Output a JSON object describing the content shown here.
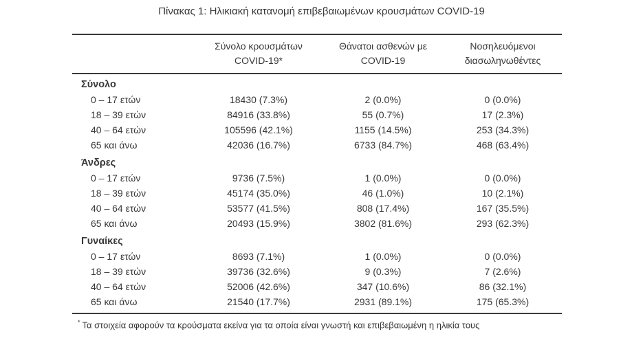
{
  "page": {
    "title": "Πίνακας 1: Ηλικιακή κατανομή επιβεβαιωμένων κρουσμάτων COVID-19"
  },
  "table": {
    "col_headers": [
      {
        "line1": "Σύνολο κρουσμάτων",
        "line2": "COVID-19*"
      },
      {
        "line1": "Θάνατοι ασθενών με",
        "line2": "COVID-19"
      },
      {
        "line1": "Νοσηλευόμενοι",
        "line2": "διασωληνωθέντες"
      }
    ],
    "sections": [
      {
        "header": "Σύνολο",
        "rows": [
          {
            "label": "0 – 17 ετών",
            "cases": "18430 (7.3%)",
            "deaths": "2 (0.0%)",
            "intubated": "0 (0.0%)"
          },
          {
            "label": "18 – 39 ετών",
            "cases": "84916 (33.8%)",
            "deaths": "55 (0.7%)",
            "intubated": "17 (2.3%)"
          },
          {
            "label": "40 – 64 ετών",
            "cases": "105596 (42.1%)",
            "deaths": "1155 (14.5%)",
            "intubated": "253 (34.3%)"
          },
          {
            "label": "65 και άνω",
            "cases": "42036 (16.7%)",
            "deaths": "6733 (84.7%)",
            "intubated": "468 (63.4%)"
          }
        ]
      },
      {
        "header": "Άνδρες",
        "rows": [
          {
            "label": "0 – 17 ετών",
            "cases": "9736 (7.5%)",
            "deaths": "1 (0.0%)",
            "intubated": "0 (0.0%)"
          },
          {
            "label": "18 – 39 ετών",
            "cases": "45174 (35.0%)",
            "deaths": "46 (1.0%)",
            "intubated": "10 (2.1%)"
          },
          {
            "label": "40 – 64 ετών",
            "cases": "53577 (41.5%)",
            "deaths": "808 (17.4%)",
            "intubated": "167 (35.5%)"
          },
          {
            "label": "65 και άνω",
            "cases": "20493 (15.9%)",
            "deaths": "3802 (81.6%)",
            "intubated": "293 (62.3%)"
          }
        ]
      },
      {
        "header": "Γυναίκες",
        "rows": [
          {
            "label": "0 – 17 ετών",
            "cases": "8693 (7.1%)",
            "deaths": "1 (0.0%)",
            "intubated": "0 (0.0%)"
          },
          {
            "label": "18 – 39 ετών",
            "cases": "39736 (32.6%)",
            "deaths": "9 (0.3%)",
            "intubated": "7 (2.6%)"
          },
          {
            "label": "40 – 64 ετών",
            "cases": "52006 (42.6%)",
            "deaths": "347 (10.6%)",
            "intubated": "86 (32.1%)"
          },
          {
            "label": "65 και άνω",
            "cases": "21540 (17.7%)",
            "deaths": "2931 (89.1%)",
            "intubated": "175 (65.3%)"
          }
        ]
      }
    ],
    "footnote_marker": "*",
    "footnote": "Τα στοιχεία αφορούν τα κρούσματα εκείνα για τα οποία είναι γνωστή και επιβεβαιωμένη η ηλικία τους"
  },
  "colors": {
    "text": "#383838",
    "rule": "#3a3a3a",
    "background": "#ffffff"
  }
}
